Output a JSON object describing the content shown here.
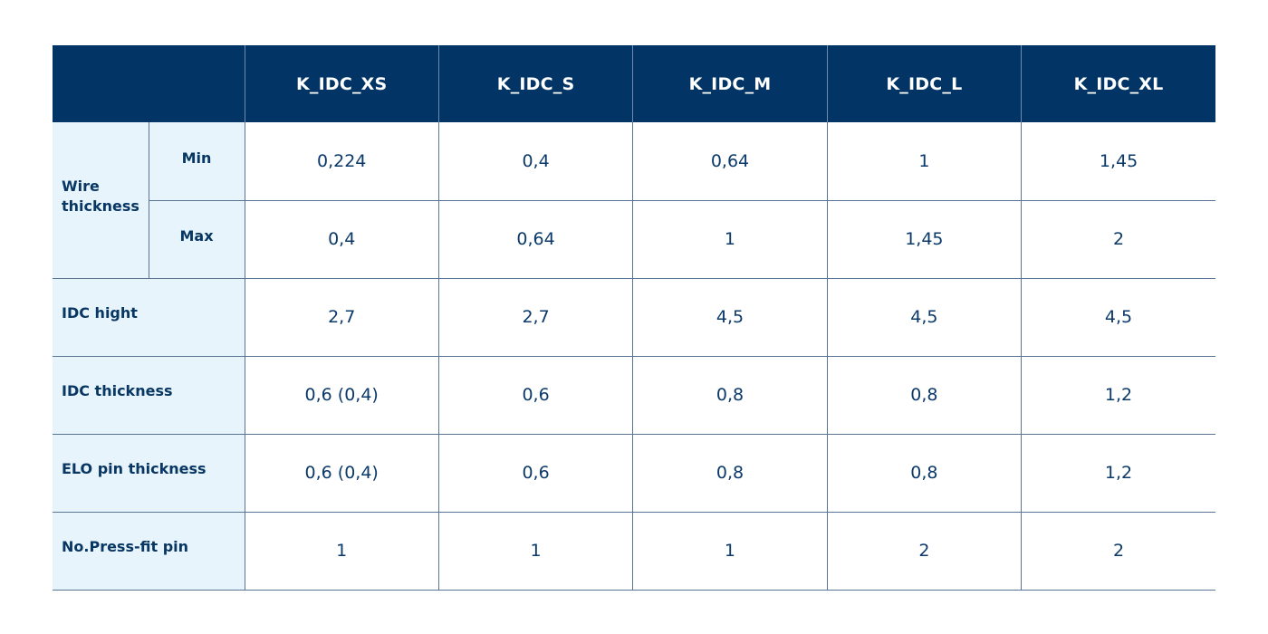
{
  "table": {
    "columns": [
      "K_IDC_XS",
      "K_IDC_S",
      "K_IDC_M",
      "K_IDC_L",
      "K_IDC_XL"
    ],
    "wire_thickness": {
      "label": "Wire thickness",
      "min": {
        "label": "Min",
        "values": [
          "0,224",
          "0,4",
          "0,64",
          "1",
          "1,45"
        ]
      },
      "max": {
        "label": "Max",
        "values": [
          "0,4",
          "0,64",
          "1",
          "1,45",
          "2"
        ]
      }
    },
    "rows": [
      {
        "label": "IDC hight",
        "values": [
          "2,7",
          "2,7",
          "4,5",
          "4,5",
          "4,5"
        ]
      },
      {
        "label": "IDC thickness",
        "values": [
          "0,6 (0,4)",
          "0,6",
          "0,8",
          "0,8",
          "1,2"
        ]
      },
      {
        "label": "ELO pin thickness",
        "values": [
          "0,6 (0,4)",
          "0,6",
          "0,8",
          "0,8",
          "1,2"
        ]
      },
      {
        "label": "No.Press-fit pin",
        "values": [
          "1",
          "1",
          "1",
          "2",
          "2"
        ]
      }
    ]
  },
  "colors": {
    "header_bg": "#023566",
    "label_bg": "#e8f4fc",
    "text_dark": "#0b3a6a",
    "grid_line": "#5a7594"
  }
}
